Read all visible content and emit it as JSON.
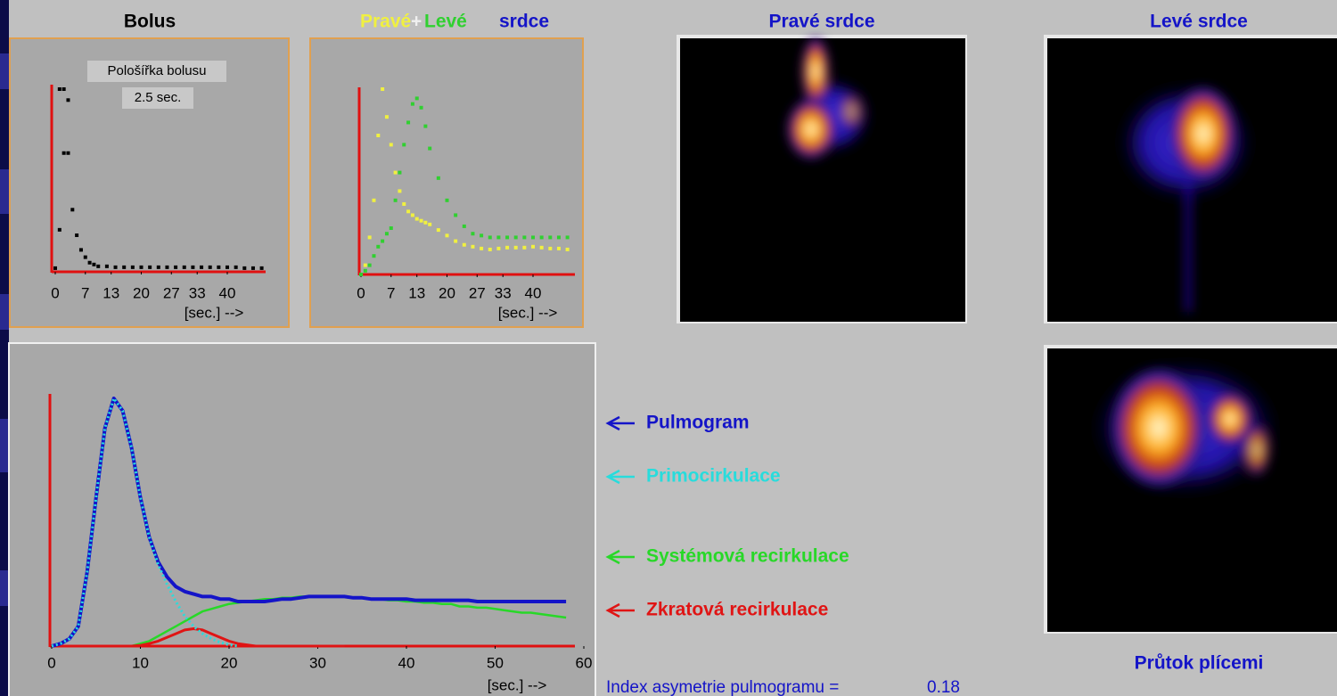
{
  "chart_data": [
    {
      "type": "scatter",
      "title": "Bolus",
      "annotations": [
        "Pološířka bolusu",
        "2.5 sec."
      ],
      "x_label": "[sec.] -->",
      "xlim": [
        0,
        48
      ],
      "ylim": [
        0,
        100
      ],
      "xticks": [
        0,
        7,
        13,
        20,
        27,
        33,
        40
      ],
      "x": [
        0,
        1,
        1,
        2,
        2,
        3,
        3,
        4,
        5,
        6,
        7,
        8,
        9,
        10,
        12,
        14,
        16,
        18,
        20,
        22,
        24,
        26,
        28,
        30,
        32,
        34,
        36,
        38,
        40,
        42,
        44,
        46,
        48
      ],
      "series": [
        {
          "name": null,
          "color": "#000000",
          "values": [
            2,
            23,
            100,
            65,
            100,
            94,
            65,
            34,
            20,
            12,
            8,
            5,
            4,
            3,
            3,
            2.5,
            2.5,
            2.5,
            2.5,
            2.5,
            2.5,
            2.5,
            2.5,
            2.5,
            2.5,
            2.5,
            2.5,
            2.5,
            2.5,
            2.5,
            2,
            2,
            2
          ]
        }
      ]
    },
    {
      "type": "scatter",
      "title_joiner": "+",
      "title_suffix": "srdce",
      "x_label": "[sec.] -->",
      "xlim": [
        0,
        48
      ],
      "ylim": [
        0,
        100
      ],
      "xticks": [
        0,
        7,
        13,
        20,
        27,
        33,
        40
      ],
      "x": [
        0,
        1,
        2,
        3,
        4,
        5,
        6,
        7,
        8,
        9,
        10,
        11,
        12,
        13,
        14,
        15,
        16,
        18,
        20,
        22,
        24,
        26,
        28,
        30,
        32,
        34,
        36,
        38,
        40,
        42,
        44,
        46,
        48
      ],
      "series": [
        {
          "name": "Pravé",
          "color": "#f0f040",
          "values": [
            0,
            5,
            20,
            40,
            75,
            100,
            85,
            70,
            55,
            45,
            38,
            34,
            32,
            30,
            29,
            28,
            27,
            24,
            21,
            18,
            16,
            15,
            14,
            13.5,
            14,
            14.5,
            14.5,
            14.5,
            15,
            14.5,
            14,
            14,
            13.5
          ]
        },
        {
          "name": "Levé",
          "color": "#30d030",
          "values": [
            0,
            2,
            5,
            10,
            15,
            18,
            22,
            25,
            40,
            55,
            70,
            82,
            92,
            95,
            90,
            80,
            68,
            52,
            40,
            32,
            26,
            22,
            21,
            20,
            20,
            20,
            20,
            20,
            20,
            20,
            20,
            20,
            20
          ]
        }
      ]
    },
    {
      "type": "line",
      "x_label": "[sec.] -->",
      "legend_position": "right",
      "xlim": [
        0,
        60
      ],
      "ylim": [
        0,
        100
      ],
      "xticks": [
        0,
        10,
        20,
        30,
        40,
        50,
        60
      ],
      "x": [
        0,
        1,
        2,
        3,
        4,
        5,
        6,
        7,
        8,
        9,
        10,
        11,
        12,
        13,
        14,
        15,
        16,
        17,
        18,
        19,
        20,
        21,
        22,
        23,
        24,
        25,
        26,
        27,
        28,
        29,
        30,
        31,
        32,
        33,
        34,
        35,
        36,
        37,
        38,
        39,
        40,
        41,
        42,
        43,
        44,
        45,
        46,
        47,
        48,
        49,
        50,
        51,
        52,
        53,
        54,
        55,
        56,
        57,
        58
      ],
      "series": [
        {
          "name": "Pulmogram",
          "color": "#1414c8",
          "values": [
            0,
            1,
            3,
            8,
            30,
            60,
            88,
            100,
            95,
            80,
            60,
            44,
            34,
            28,
            24,
            22,
            21,
            20,
            20,
            19,
            19,
            18,
            18,
            18,
            18,
            18.5,
            19,
            19,
            19.5,
            20,
            20,
            20,
            20,
            20,
            19.5,
            19.5,
            19,
            19,
            19,
            19,
            19,
            18.5,
            18.5,
            18.5,
            18.5,
            18.5,
            18.5,
            18.5,
            18,
            18,
            18,
            18,
            18,
            18,
            18,
            18,
            18,
            18,
            18
          ]
        },
        {
          "name": "Primocirkulace",
          "color": "#28dcdc",
          "values": [
            0,
            1,
            3,
            8,
            30,
            60,
            88,
            100,
            95,
            80,
            60,
            44,
            33,
            25,
            18,
            12,
            8,
            5,
            3,
            1.5,
            0.5,
            0,
            null,
            null,
            null,
            null,
            null,
            null,
            null,
            null,
            null,
            null,
            null,
            null,
            null,
            null,
            null,
            null,
            null,
            null,
            null,
            null,
            null,
            null,
            null,
            null,
            null,
            null,
            null,
            null,
            null,
            null,
            null,
            null,
            null,
            null,
            null,
            null,
            null
          ]
        },
        {
          "name": "Systémová recirkulace",
          "color": "#28d828",
          "values": [
            0,
            0,
            0,
            0,
            0,
            0,
            0,
            0,
            0,
            0,
            1,
            2,
            4,
            6,
            8,
            10,
            12,
            14,
            15,
            16,
            17,
            17.5,
            18,
            18.5,
            19,
            19,
            19.5,
            19.5,
            20,
            20,
            20,
            20,
            20,
            20,
            19.5,
            19.5,
            19,
            19,
            18.5,
            18.5,
            18,
            18,
            17.5,
            17.5,
            17,
            17,
            16,
            16,
            15.5,
            15.5,
            15,
            14.5,
            14,
            13.5,
            13.5,
            13,
            12.5,
            12,
            11.5
          ]
        },
        {
          "name": "Zkratová recirkulace",
          "color": "#e01414",
          "values": [
            0,
            0,
            0,
            0,
            0,
            0,
            0,
            0,
            0,
            0,
            0.3,
            1,
            2,
            3.5,
            5,
            6.5,
            7,
            6.5,
            5,
            3.5,
            2,
            1,
            0.5,
            0,
            0,
            0,
            0,
            0,
            0,
            0,
            0,
            0,
            0,
            0,
            null,
            null,
            null,
            null,
            null,
            null,
            null,
            null,
            null,
            null,
            null,
            null,
            null,
            null,
            null,
            null,
            null,
            null,
            null,
            null,
            null,
            null,
            null,
            null,
            null
          ]
        }
      ]
    }
  ],
  "images": [
    {
      "title": "Pravé srdce"
    },
    {
      "title": "Levé srdce"
    },
    {
      "title": "Průtok plícemi"
    }
  ],
  "index": {
    "label": "Index asymetrie pulmogramu =",
    "value": 0.18
  }
}
